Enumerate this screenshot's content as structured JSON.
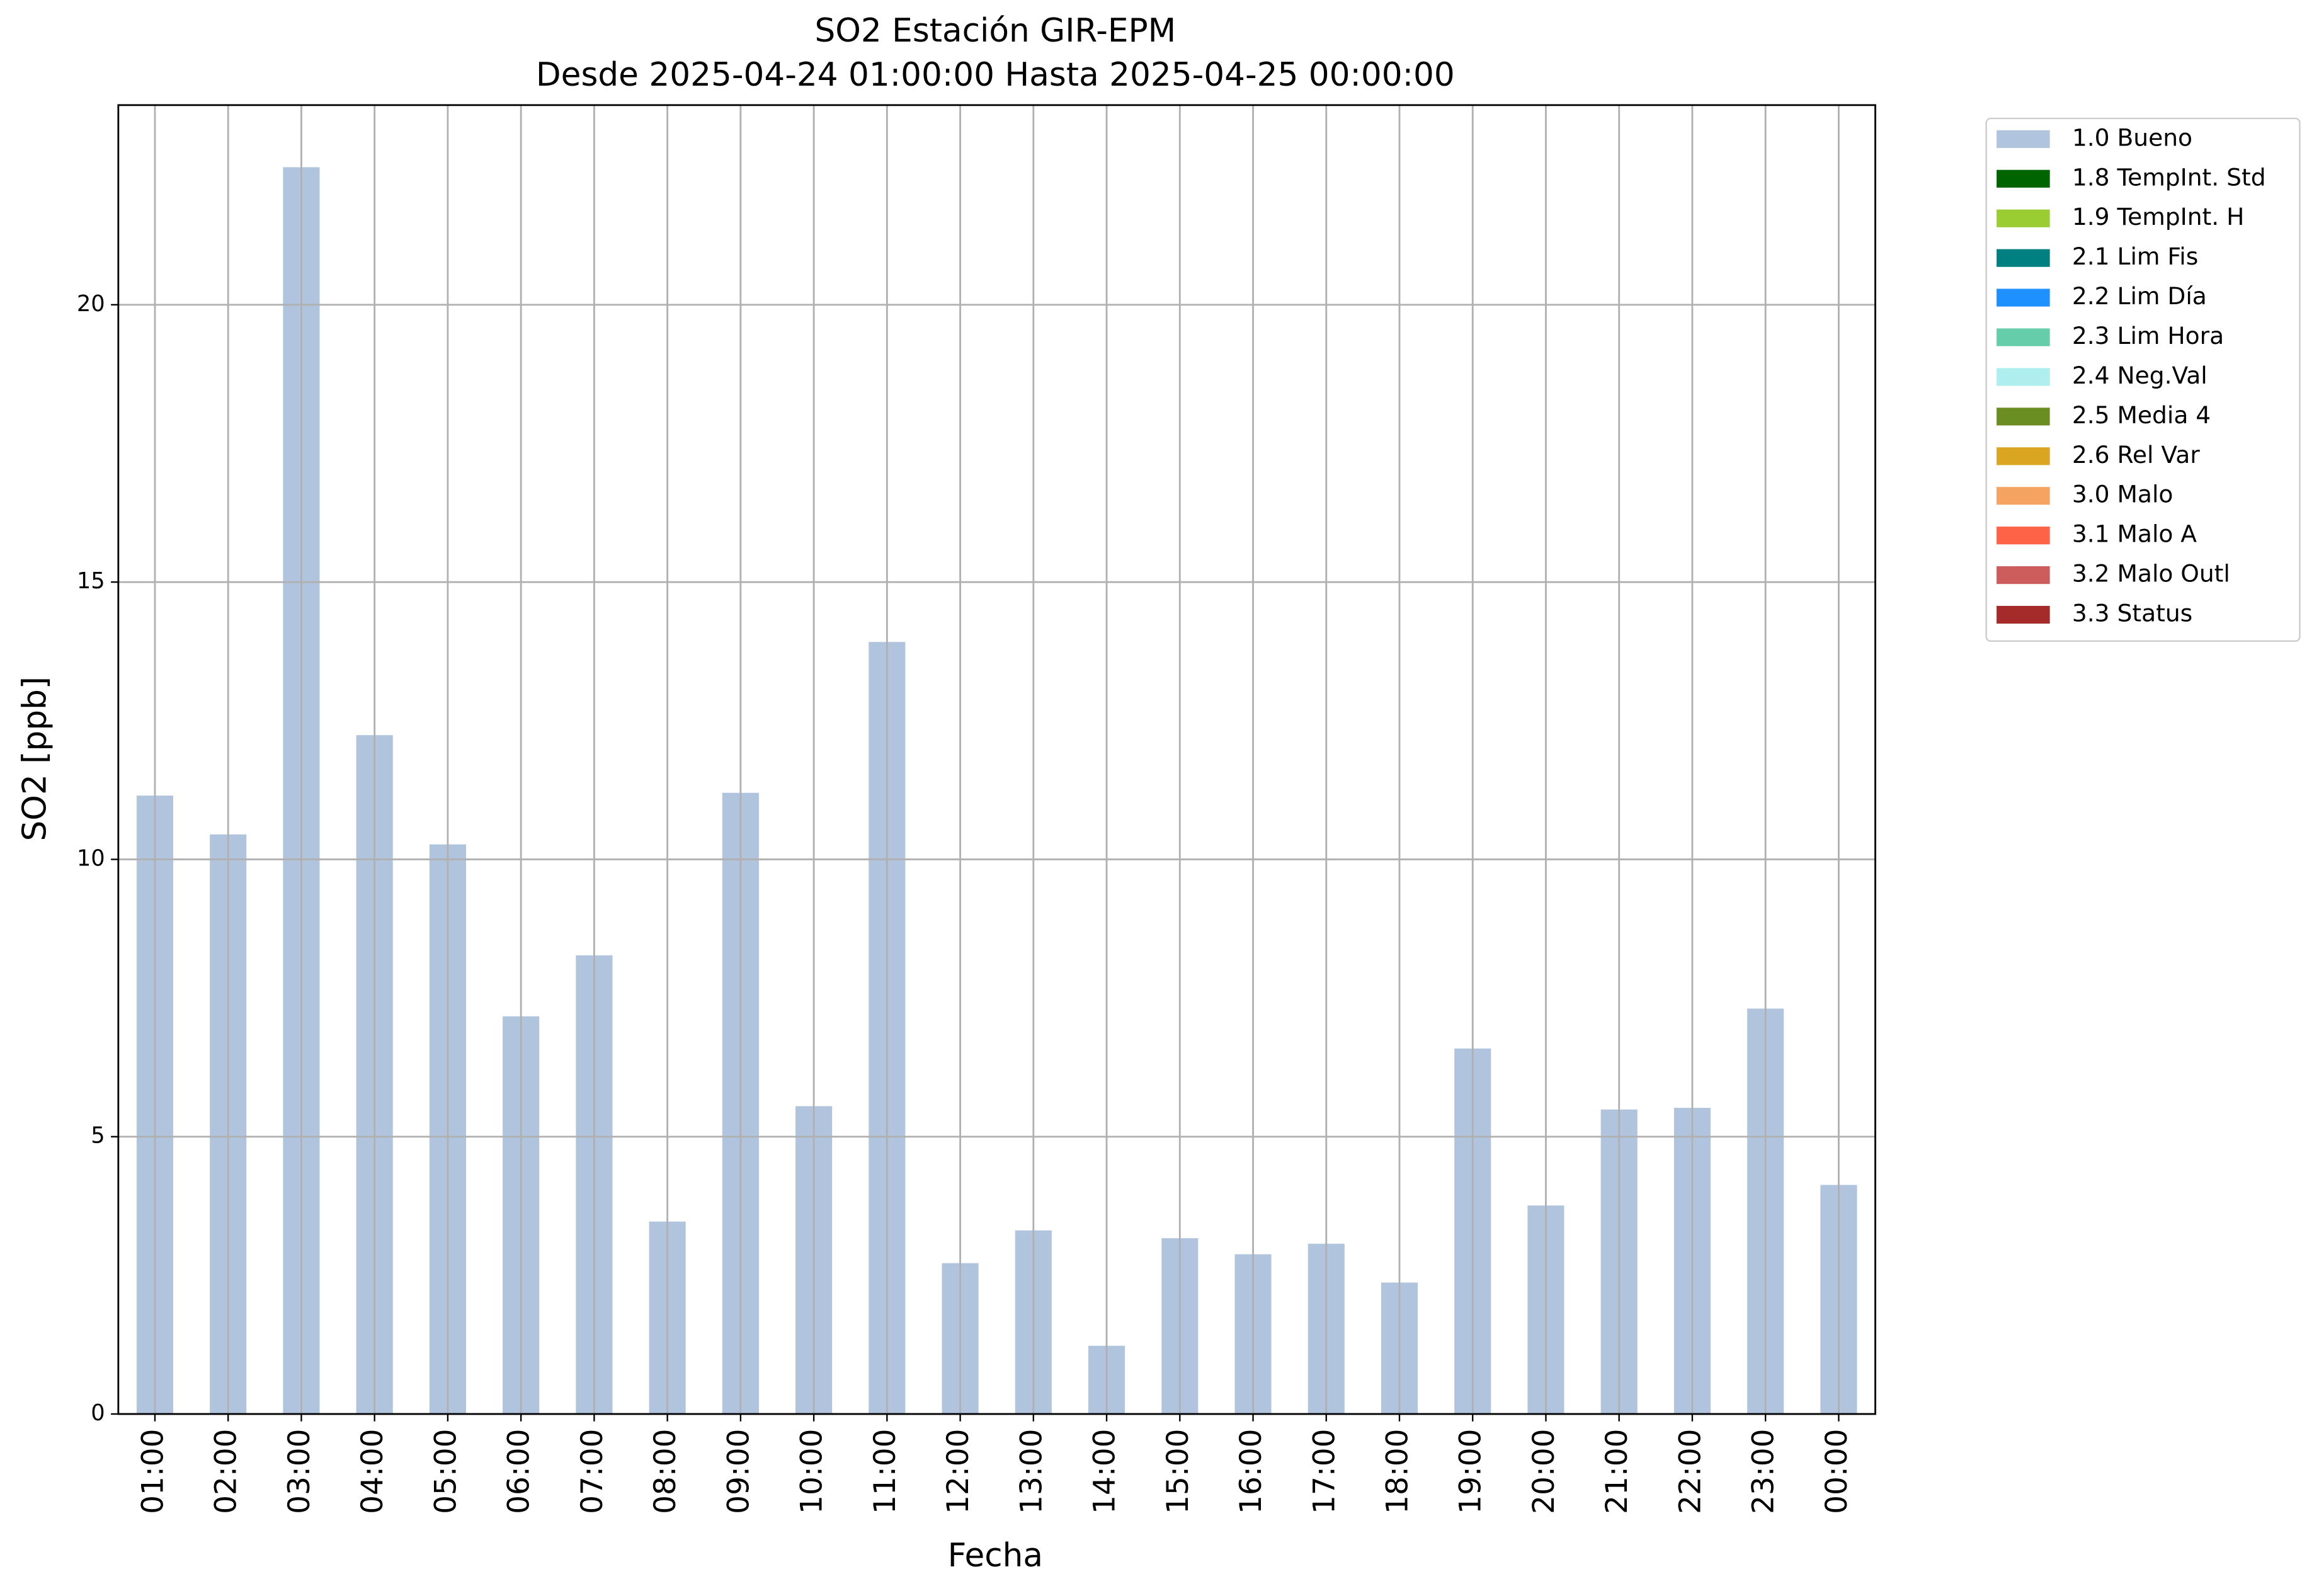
{
  "chart_data": {
    "type": "bar",
    "stacked": true,
    "title": "SO2 Estación GIR-EPM",
    "subtitle": "Desde 2025-04-24 01:00:00 Hasta 2025-04-25 00:00:00",
    "x_label": "Fecha",
    "y_label": "SO2 [ppb]",
    "categories": [
      "01:00",
      "02:00",
      "03:00",
      "04:00",
      "05:00",
      "06:00",
      "07:00",
      "08:00",
      "09:00",
      "10:00",
      "11:00",
      "12:00",
      "13:00",
      "14:00",
      "15:00",
      "16:00",
      "17:00",
      "18:00",
      "19:00",
      "20:00",
      "21:00",
      "22:00",
      "23:00",
      "00:00"
    ],
    "series": [
      {
        "name": "1.0 Bueno",
        "color": "#b0c4de",
        "values": [
          11.15,
          10.45,
          22.48,
          12.24,
          10.27,
          7.17,
          8.27,
          3.47,
          11.2,
          5.55,
          13.92,
          2.72,
          3.31,
          1.23,
          3.17,
          2.88,
          3.07,
          2.37,
          6.59,
          3.76,
          5.49,
          5.52,
          7.31,
          4.13
        ]
      },
      {
        "name": "1.8 TempInt. Std",
        "color": "#006400"
      },
      {
        "name": "1.9 TempInt. H",
        "color": "#9acd32"
      },
      {
        "name": "2.1 Lim Fis",
        "color": "#008080"
      },
      {
        "name": "2.2 Lim Día",
        "color": "#1e90ff"
      },
      {
        "name": "2.3 Lim Hora",
        "color": "#66cdaa"
      },
      {
        "name": "2.4 Neg.Val",
        "color": "#afeeee"
      },
      {
        "name": "2.5 Media 4",
        "color": "#6b8e23"
      },
      {
        "name": "2.6 Rel Var",
        "color": "#daa520"
      },
      {
        "name": "3.0 Malo",
        "color": "#f4a460"
      },
      {
        "name": "3.1 Malo A",
        "color": "#ff6347"
      },
      {
        "name": "3.2 Malo Outl",
        "color": "#cd5c5c"
      },
      {
        "name": "3.3 Status",
        "color": "#a52a2a"
      }
    ],
    "ylim": [
      0,
      23.6
    ],
    "yticks": [
      0,
      5,
      10,
      15,
      20
    ],
    "grid": true,
    "legend": "outside upper right"
  }
}
